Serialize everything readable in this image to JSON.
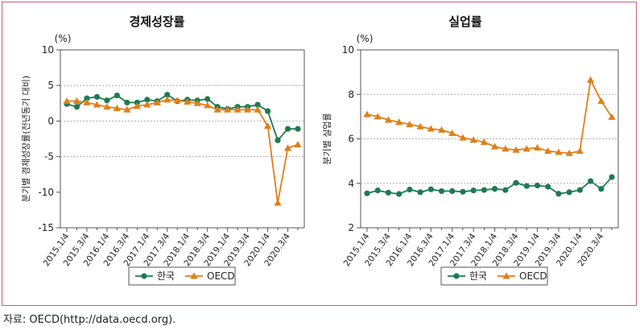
{
  "source_note": "자료: OECD(http://data.oecd.org).",
  "colors": {
    "korea": "#1e7a50",
    "oecd": "#e07f1a",
    "grid": "#b0b0b0"
  },
  "chart_data": [
    {
      "type": "line",
      "title": "경제성장률",
      "unit": "(%)",
      "ylabel": "분기별 경제성장률(전년동기 대비)",
      "ylim": [
        -15,
        10
      ],
      "yticks": [
        -15,
        -10,
        -5,
        0,
        5,
        10
      ],
      "grid_y": [
        -5,
        0,
        5
      ],
      "x": [
        "2015.1/4",
        "2015.2/4",
        "2015.3/4",
        "2015.4/4",
        "2016.1/4",
        "2016.2/4",
        "2016.3/4",
        "2016.4/4",
        "2017.1/4",
        "2017.2/4",
        "2017.3/4",
        "2017.4/4",
        "2018.1/4",
        "2018.2/4",
        "2018.3/4",
        "2018.4/4",
        "2019.1/4",
        "2019.2/4",
        "2019.3/4",
        "2019.4/4",
        "2020.1/4",
        "2020.2/4",
        "2020.3/4",
        "2020.4/4"
      ],
      "xtick_labels": [
        "2015.1/4",
        "2015.3/4",
        "2016.1/4",
        "2016.3/4",
        "2017.1/4",
        "2017.3/4",
        "2018.1/4",
        "2018.3/4",
        "2019.1/4",
        "2019.3/4",
        "2020.1/4",
        "2020.3/4"
      ],
      "legend": [
        "한국",
        "OECD"
      ],
      "legend_position": "bottom",
      "series": [
        {
          "name": "한국",
          "marker": "circle",
          "values": [
            2.4,
            2.0,
            3.2,
            3.4,
            2.9,
            3.6,
            2.6,
            2.6,
            3.0,
            2.8,
            3.7,
            2.8,
            3.0,
            2.9,
            3.1,
            2.0,
            1.7,
            2.0,
            2.0,
            2.3,
            1.4,
            -2.7,
            -1.1,
            -1.1
          ]
        },
        {
          "name": "OECD",
          "marker": "triangle",
          "values": [
            2.8,
            2.8,
            2.6,
            2.3,
            2.0,
            1.8,
            1.6,
            2.1,
            2.3,
            2.6,
            3.0,
            2.9,
            2.7,
            2.5,
            2.2,
            1.6,
            1.6,
            1.6,
            1.6,
            1.6,
            -0.7,
            -11.5,
            -3.8,
            -3.3
          ]
        }
      ]
    },
    {
      "type": "line",
      "title": "실업률",
      "unit": "(%)",
      "ylabel": "분기별 실업률",
      "ylim": [
        2,
        10
      ],
      "yticks": [
        2,
        4,
        6,
        8,
        10
      ],
      "grid_y": [
        4,
        6,
        8
      ],
      "x": [
        "2015.1/4",
        "2015.2/4",
        "2015.3/4",
        "2015.4/4",
        "2016.1/4",
        "2016.2/4",
        "2016.3/4",
        "2016.4/4",
        "2017.1/4",
        "2017.2/4",
        "2017.3/4",
        "2017.4/4",
        "2018.1/4",
        "2018.2/4",
        "2018.3/4",
        "2018.4/4",
        "2019.1/4",
        "2019.2/4",
        "2019.3/4",
        "2019.4/4",
        "2020.1/4",
        "2020.2/4",
        "2020.3/4",
        "2020.4/4"
      ],
      "xtick_labels": [
        "2015.1/4",
        "2015.3/4",
        "2016.1/4",
        "2016.3/4",
        "2017.1/4",
        "2017.3/4",
        "2018.1/4",
        "2018.3/4",
        "2019.1/4",
        "2019.3/4",
        "2020.1/4",
        "2020.3/4"
      ],
      "legend": [
        "한국",
        "OECD"
      ],
      "legend_position": "bottom",
      "series": [
        {
          "name": "한국",
          "marker": "circle",
          "values": [
            3.55,
            3.68,
            3.58,
            3.52,
            3.72,
            3.6,
            3.73,
            3.65,
            3.65,
            3.62,
            3.68,
            3.7,
            3.75,
            3.7,
            4.02,
            3.88,
            3.9,
            3.85,
            3.53,
            3.6,
            3.7,
            4.1,
            3.75,
            4.28
          ]
        },
        {
          "name": "OECD",
          "marker": "triangle",
          "values": [
            7.1,
            7.0,
            6.85,
            6.75,
            6.65,
            6.55,
            6.45,
            6.4,
            6.25,
            6.05,
            5.95,
            5.85,
            5.65,
            5.55,
            5.5,
            5.55,
            5.6,
            5.45,
            5.4,
            5.35,
            5.45,
            8.65,
            7.7,
            6.98
          ]
        }
      ]
    }
  ]
}
